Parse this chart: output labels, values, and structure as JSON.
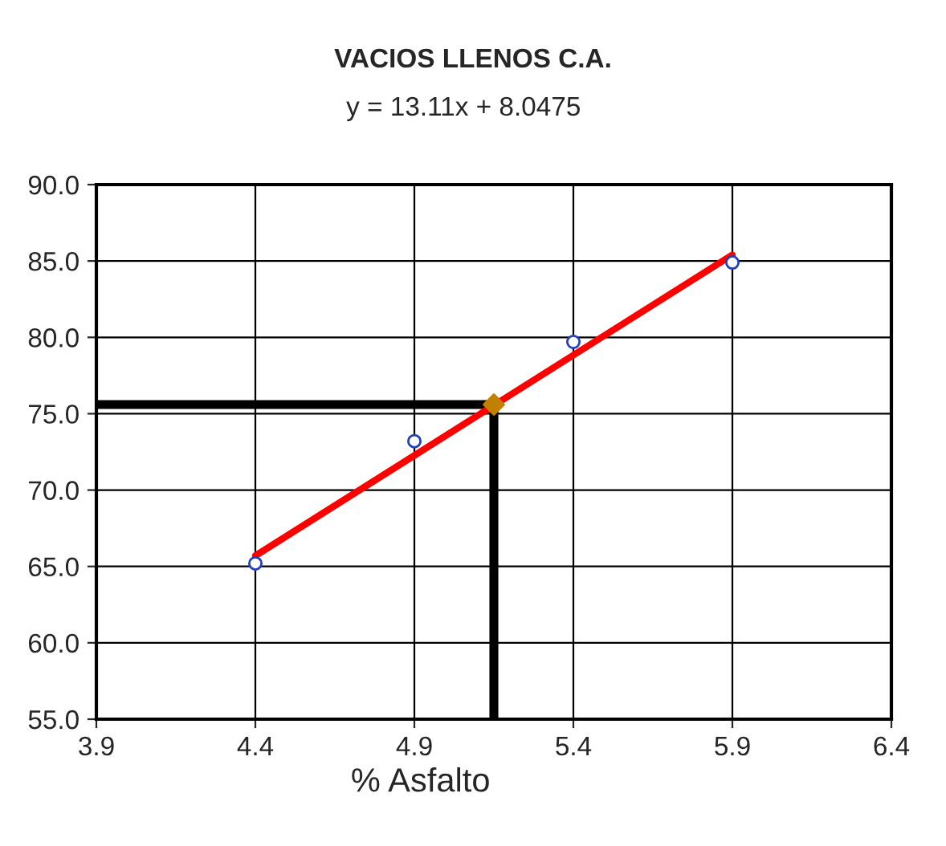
{
  "chart_data": {
    "type": "scatter",
    "title": "VACIOS LLENOS C.A.",
    "subtitle": "y = 13.11x + 8.0475",
    "xlabel": "% Asfalto",
    "xlim": [
      3.9,
      6.4
    ],
    "xticks": [
      3.9,
      4.4,
      4.9,
      5.4,
      5.9,
      6.4
    ],
    "ylim": [
      55,
      90
    ],
    "yticks": [
      {
        "value": 55,
        "label": "55.0"
      },
      {
        "value": 60,
        "label": "60.0"
      },
      {
        "value": 65,
        "label": "65.0"
      },
      {
        "value": 70,
        "label": "70.0"
      },
      {
        "value": 75,
        "label": "75.0"
      },
      {
        "value": 80,
        "label": "80.0"
      },
      {
        "value": 85,
        "label": "85.0"
      },
      {
        "value": 90,
        "label": "90.0"
      }
    ],
    "grid": true,
    "series": [
      {
        "type": "line",
        "color": "#000000",
        "x": [
          3.9,
          5.15,
          5.15
        ],
        "values": [
          75.6,
          75.6,
          55
        ],
        "marker": "none"
      },
      {
        "type": "line",
        "color": "#ff0000",
        "x": [
          4.4,
          5.9
        ],
        "values": [
          65.7,
          85.4
        ],
        "marker": "none"
      },
      {
        "color": "#1f3fbf",
        "x": [
          4.4,
          4.9,
          5.4,
          5.9
        ],
        "values": [
          65.2,
          73.2,
          79.7,
          84.9
        ],
        "marker": "circle"
      },
      {
        "color": "#c08000",
        "x": [
          5.15
        ],
        "values": [
          75.6
        ],
        "marker": "diamond"
      }
    ]
  }
}
